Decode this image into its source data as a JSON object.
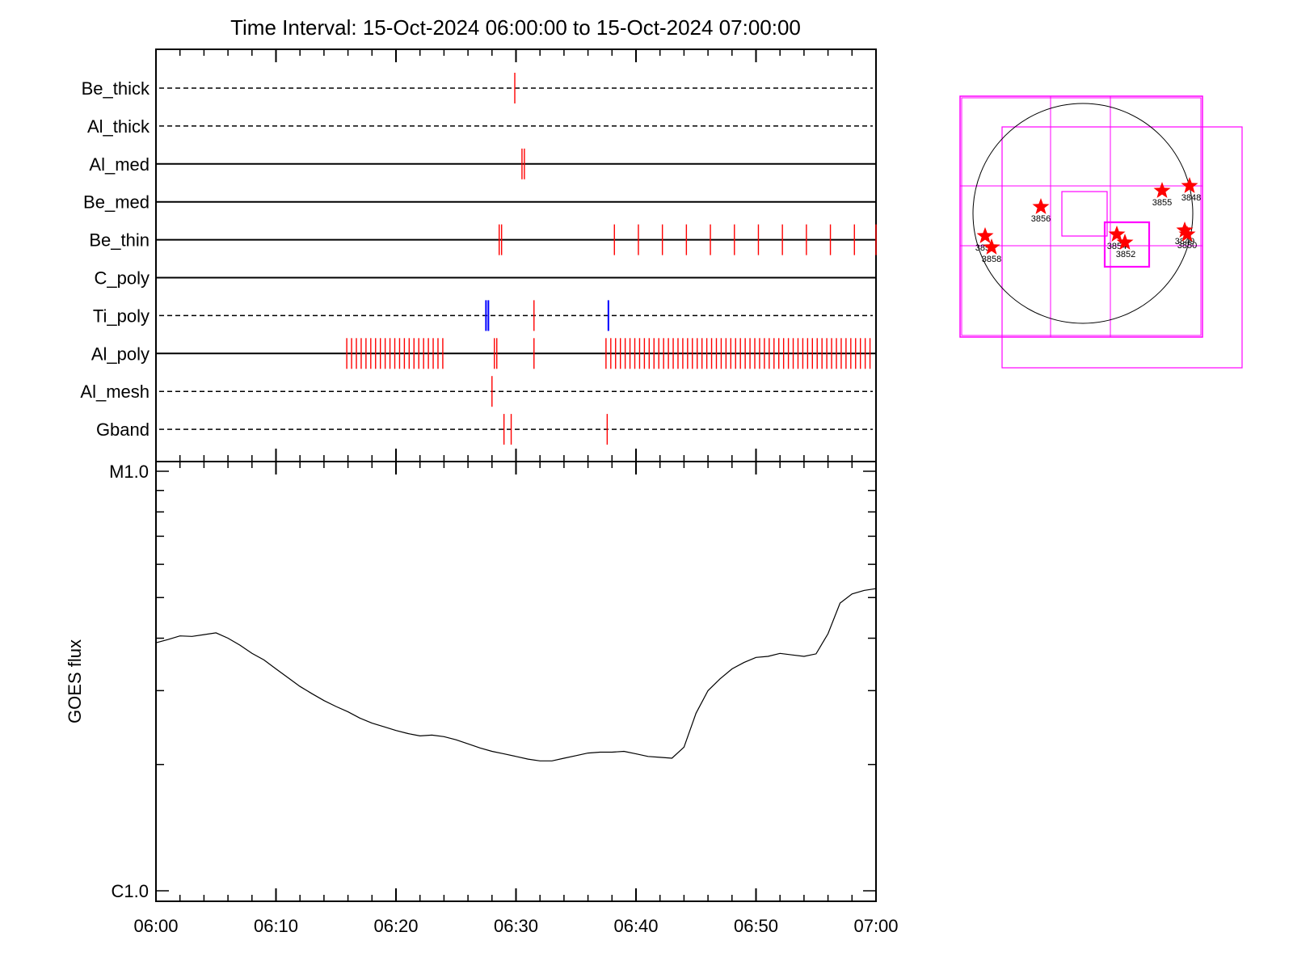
{
  "title": "Time Interval: 15-Oct-2024 06:00:00 to 15-Oct-2024 07:00:00",
  "colors": {
    "exposure": "#ff0000",
    "highlight": "#0000ff",
    "axis": "#000000",
    "fov": "#ff00ff"
  },
  "chart_data": [
    {
      "type": "timeline",
      "x_range": [
        "06:00",
        "07:00"
      ],
      "filters": [
        {
          "name": "Be_thick",
          "line": "dashed",
          "events": [
            {
              "t": 29.9,
              "c": "red"
            }
          ]
        },
        {
          "name": "Al_thick",
          "line": "dashed",
          "events": []
        },
        {
          "name": "Al_med",
          "line": "solid",
          "events": [
            {
              "t": 30.5,
              "c": "red"
            },
            {
              "t": 30.7,
              "c": "red"
            }
          ]
        },
        {
          "name": "Be_med",
          "line": "solid",
          "events": []
        },
        {
          "name": "Be_thin",
          "line": "solid",
          "events": [
            {
              "t": 28.6,
              "c": "red"
            },
            {
              "t": 28.8,
              "c": "red"
            },
            {
              "t": 38.2,
              "c": "red"
            },
            {
              "t": 40.2,
              "c": "red"
            },
            {
              "t": 42.2,
              "c": "red"
            },
            {
              "t": 44.2,
              "c": "red"
            },
            {
              "t": 46.2,
              "c": "red"
            },
            {
              "t": 48.2,
              "c": "red"
            },
            {
              "t": 50.2,
              "c": "red"
            },
            {
              "t": 52.2,
              "c": "red"
            },
            {
              "t": 54.2,
              "c": "red"
            },
            {
              "t": 56.2,
              "c": "red"
            },
            {
              "t": 58.2,
              "c": "red"
            },
            {
              "t": 60.0,
              "c": "red"
            }
          ]
        },
        {
          "name": "C_poly",
          "line": "solid",
          "events": []
        },
        {
          "name": "Ti_poly",
          "line": "dashed",
          "events": [
            {
              "t": 27.5,
              "c": "blue"
            },
            {
              "t": 27.7,
              "c": "blue"
            },
            {
              "t": 31.5,
              "c": "red"
            },
            {
              "t": 37.7,
              "c": "blue"
            }
          ]
        },
        {
          "name": "Al_poly",
          "line": "solid",
          "events": [
            {
              "t": 15.9,
              "c": "red"
            },
            {
              "t": 16.3,
              "c": "red"
            },
            {
              "t": 16.7,
              "c": "red"
            },
            {
              "t": 17.1,
              "c": "red"
            },
            {
              "t": 17.5,
              "c": "red"
            },
            {
              "t": 17.9,
              "c": "red"
            },
            {
              "t": 18.3,
              "c": "red"
            },
            {
              "t": 18.7,
              "c": "red"
            },
            {
              "t": 19.1,
              "c": "red"
            },
            {
              "t": 19.5,
              "c": "red"
            },
            {
              "t": 19.9,
              "c": "red"
            },
            {
              "t": 20.3,
              "c": "red"
            },
            {
              "t": 20.7,
              "c": "red"
            },
            {
              "t": 21.1,
              "c": "red"
            },
            {
              "t": 21.5,
              "c": "red"
            },
            {
              "t": 21.9,
              "c": "red"
            },
            {
              "t": 22.3,
              "c": "red"
            },
            {
              "t": 22.7,
              "c": "red"
            },
            {
              "t": 23.1,
              "c": "red"
            },
            {
              "t": 23.5,
              "c": "red"
            },
            {
              "t": 23.9,
              "c": "red"
            },
            {
              "t": 28.2,
              "c": "red"
            },
            {
              "t": 28.4,
              "c": "red"
            },
            {
              "t": 31.5,
              "c": "red"
            },
            {
              "t": 37.5,
              "c": "red"
            },
            {
              "t": 37.9,
              "c": "red"
            },
            {
              "t": 38.3,
              "c": "red"
            },
            {
              "t": 38.7,
              "c": "red"
            },
            {
              "t": 39.1,
              "c": "red"
            },
            {
              "t": 39.5,
              "c": "red"
            },
            {
              "t": 39.9,
              "c": "red"
            },
            {
              "t": 40.3,
              "c": "red"
            },
            {
              "t": 40.7,
              "c": "red"
            },
            {
              "t": 41.1,
              "c": "red"
            },
            {
              "t": 41.5,
              "c": "red"
            },
            {
              "t": 41.9,
              "c": "red"
            },
            {
              "t": 42.3,
              "c": "red"
            },
            {
              "t": 42.7,
              "c": "red"
            },
            {
              "t": 43.1,
              "c": "red"
            },
            {
              "t": 43.5,
              "c": "red"
            },
            {
              "t": 43.9,
              "c": "red"
            },
            {
              "t": 44.3,
              "c": "red"
            },
            {
              "t": 44.7,
              "c": "red"
            },
            {
              "t": 45.1,
              "c": "red"
            },
            {
              "t": 45.5,
              "c": "red"
            },
            {
              "t": 45.9,
              "c": "red"
            },
            {
              "t": 46.3,
              "c": "red"
            },
            {
              "t": 46.7,
              "c": "red"
            },
            {
              "t": 47.1,
              "c": "red"
            },
            {
              "t": 47.5,
              "c": "red"
            },
            {
              "t": 47.9,
              "c": "red"
            },
            {
              "t": 48.3,
              "c": "red"
            },
            {
              "t": 48.7,
              "c": "red"
            },
            {
              "t": 49.1,
              "c": "red"
            },
            {
              "t": 49.5,
              "c": "red"
            },
            {
              "t": 49.9,
              "c": "red"
            },
            {
              "t": 50.3,
              "c": "red"
            },
            {
              "t": 50.7,
              "c": "red"
            },
            {
              "t": 51.1,
              "c": "red"
            },
            {
              "t": 51.5,
              "c": "red"
            },
            {
              "t": 51.9,
              "c": "red"
            },
            {
              "t": 52.3,
              "c": "red"
            },
            {
              "t": 52.7,
              "c": "red"
            },
            {
              "t": 53.1,
              "c": "red"
            },
            {
              "t": 53.5,
              "c": "red"
            },
            {
              "t": 53.9,
              "c": "red"
            },
            {
              "t": 54.3,
              "c": "red"
            },
            {
              "t": 54.7,
              "c": "red"
            },
            {
              "t": 55.1,
              "c": "red"
            },
            {
              "t": 55.5,
              "c": "red"
            },
            {
              "t": 55.9,
              "c": "red"
            },
            {
              "t": 56.3,
              "c": "red"
            },
            {
              "t": 56.7,
              "c": "red"
            },
            {
              "t": 57.1,
              "c": "red"
            },
            {
              "t": 57.5,
              "c": "red"
            },
            {
              "t": 57.9,
              "c": "red"
            },
            {
              "t": 58.3,
              "c": "red"
            },
            {
              "t": 58.7,
              "c": "red"
            },
            {
              "t": 59.1,
              "c": "red"
            },
            {
              "t": 59.5,
              "c": "red"
            }
          ]
        },
        {
          "name": "Al_mesh",
          "line": "dashed",
          "events": [
            {
              "t": 28.0,
              "c": "red"
            }
          ]
        },
        {
          "name": "Gband",
          "line": "dashed",
          "events": [
            {
              "t": 29.0,
              "c": "red"
            },
            {
              "t": 29.6,
              "c": "red"
            },
            {
              "t": 37.6,
              "c": "red"
            }
          ]
        }
      ]
    },
    {
      "type": "line",
      "ylabel": "GOES flux",
      "y_scale": "log",
      "y_ticks": [
        "M1.0",
        "C1.0"
      ],
      "ylim": [
        1e-06,
        1e-05
      ],
      "x_ticks": [
        "06:00",
        "06:10",
        "06:20",
        "06:30",
        "06:40",
        "06:50",
        "07:00"
      ],
      "series": [
        {
          "x": [
            0,
            1,
            2,
            3,
            4,
            5,
            6,
            7,
            8,
            9,
            10,
            11,
            12,
            13,
            14,
            15,
            16,
            17,
            18,
            19,
            20,
            21,
            22,
            23,
            24,
            25,
            26,
            27,
            28,
            29,
            30,
            31,
            32,
            33,
            34,
            35,
            36,
            37,
            38,
            39,
            40,
            41,
            42,
            43,
            44,
            45,
            46,
            47,
            48,
            49,
            50,
            51,
            52,
            53,
            54,
            55,
            56,
            57,
            58,
            59,
            60
          ],
          "y": [
            3.9e-06,
            3.97e-06,
            4.05e-06,
            4.04e-06,
            4.08e-06,
            4.12e-06,
            4e-06,
            3.85e-06,
            3.68e-06,
            3.55e-06,
            3.38e-06,
            3.22e-06,
            3.07e-06,
            2.95e-06,
            2.84e-06,
            2.75e-06,
            2.67e-06,
            2.58e-06,
            2.51e-06,
            2.46e-06,
            2.41e-06,
            2.37e-06,
            2.34e-06,
            2.35e-06,
            2.33e-06,
            2.29e-06,
            2.24e-06,
            2.19e-06,
            2.15e-06,
            2.12e-06,
            2.09e-06,
            2.06e-06,
            2.04e-06,
            2.04e-06,
            2.07e-06,
            2.1e-06,
            2.13e-06,
            2.14e-06,
            2.14e-06,
            2.15e-06,
            2.12e-06,
            2.09e-06,
            2.08e-06,
            2.07e-06,
            2.2e-06,
            2.65e-06,
            3e-06,
            3.2e-06,
            3.38e-06,
            3.5e-06,
            3.6e-06,
            3.62e-06,
            3.68e-06,
            3.65e-06,
            3.62e-06,
            3.67e-06,
            4.1e-06,
            4.85e-06,
            5.1e-06,
            5.2e-06,
            5.25e-06
          ]
        }
      ]
    }
  ],
  "sun_map": {
    "regions": [
      {
        "label": "3848"
      },
      {
        "label": "3855"
      },
      {
        "label": "3856"
      },
      {
        "label": "3857"
      },
      {
        "label": "3858"
      },
      {
        "label": "3854"
      },
      {
        "label": "3852"
      },
      {
        "label": "3849"
      },
      {
        "label": "3850"
      }
    ]
  }
}
